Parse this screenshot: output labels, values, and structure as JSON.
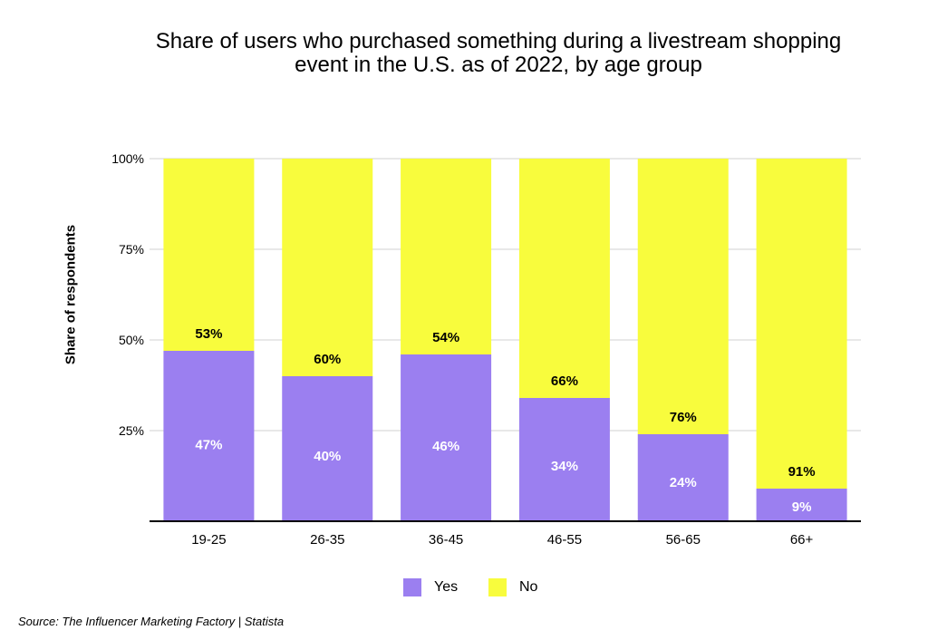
{
  "chart_data": {
    "type": "bar",
    "stacked": true,
    "title": "Share of users who purchased something during a livestream shopping event in the U.S. as of 2022, by age group",
    "xlabel": "",
    "ylabel": "Share of respondents",
    "ylim": [
      0,
      100
    ],
    "yticks": [
      25,
      50,
      75,
      100
    ],
    "ytick_labels": [
      "25%",
      "50%",
      "75%",
      "100%"
    ],
    "categories": [
      "19-25",
      "26-35",
      "36-45",
      "46-55",
      "56-65",
      "66+"
    ],
    "series": [
      {
        "name": "Yes",
        "color": "#9b7ff0",
        "values": [
          47,
          40,
          46,
          34,
          24,
          9
        ],
        "labels": [
          "47%",
          "40%",
          "46%",
          "34%",
          "24%",
          "9%"
        ],
        "label_color": "#ffffff"
      },
      {
        "name": "No",
        "color": "#f8fc3d",
        "values": [
          53,
          60,
          54,
          66,
          76,
          91
        ],
        "labels": [
          "53%",
          "60%",
          "54%",
          "66%",
          "76%",
          "91%"
        ],
        "label_color": "#000000"
      }
    ],
    "legend_position": "bottom"
  },
  "source": "Source: The Influencer Marketing Factory | Statista"
}
